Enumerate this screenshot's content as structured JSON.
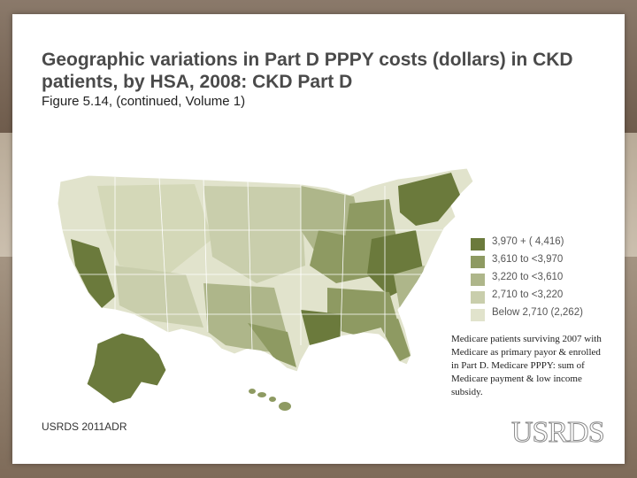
{
  "title": "Geographic variations in Part D PPPY costs (dollars) in CKD patients, by HSA, 2008: CKD Part D",
  "subtitle": "Figure 5.14, (continued, Volume 1)",
  "legend": [
    {
      "label": "3,970 + ( 4,416)",
      "color": "#6b7a3c"
    },
    {
      "label": "3,610 to <3,970",
      "color": "#8e9a62"
    },
    {
      "label": "3,220 to <3,610",
      "color": "#aeb68a"
    },
    {
      "label": "2,710 to <3,220",
      "color": "#c9ceac"
    },
    {
      "label": "Below 2,710 (2,262)",
      "color": "#e1e3cc"
    }
  ],
  "note": "Medicare patients surviving 2007 with Medicare as primary payor & enrolled in Part D. Medicare PPPY: sum of Medicare payment & low income subsidy.",
  "source": "USRDS 2011ADR",
  "logo_text": "USRDS"
}
